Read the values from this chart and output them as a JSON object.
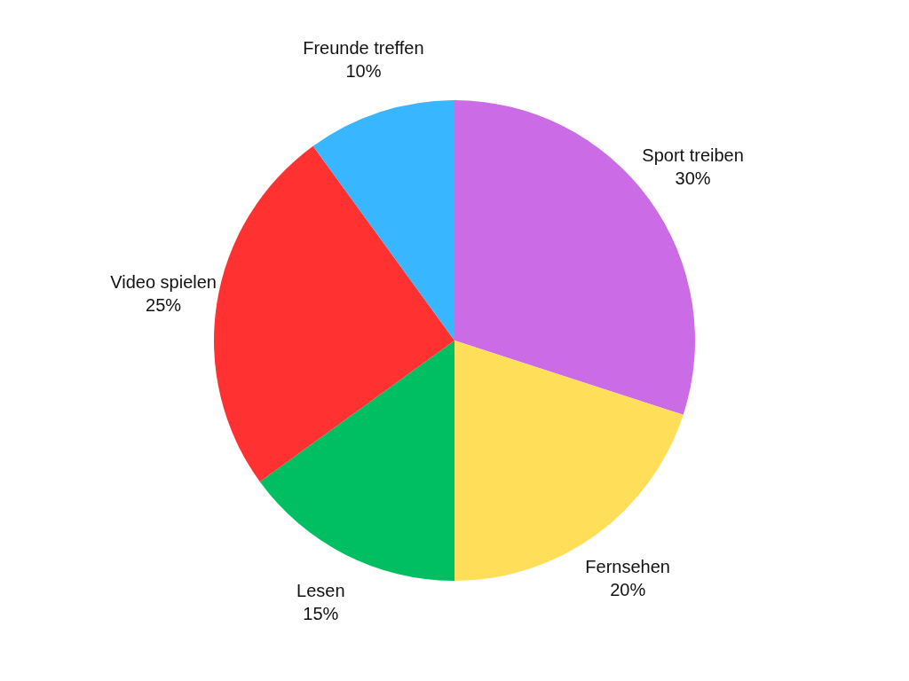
{
  "chart_data": {
    "type": "pie",
    "categories": [
      "Sport treiben",
      "Fernsehen",
      "Lesen",
      "Video spielen",
      "Freunde treffen"
    ],
    "values": [
      30,
      20,
      15,
      25,
      10
    ],
    "colors": [
      "#cb6ce6",
      "#ffde59",
      "#00bf63",
      "#ff3131",
      "#38b6ff"
    ],
    "value_labels": [
      "30%",
      "20%",
      "15%",
      "25%",
      "10%"
    ]
  }
}
